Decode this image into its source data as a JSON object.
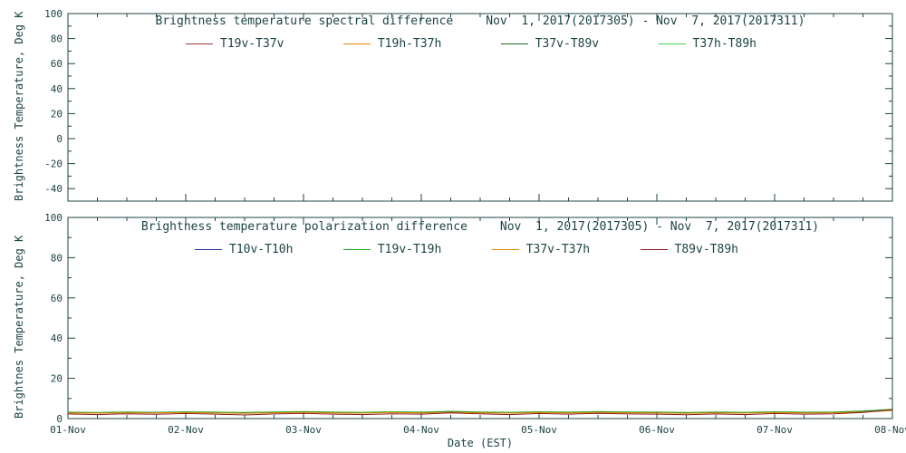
{
  "text_color": "#1c4444",
  "axis_color": "#1c4444",
  "chart_data": [
    {
      "type": "line",
      "title": "Brightness temperature spectral difference",
      "date_range": "Nov  1, 2017(2017305) - Nov  7, 2017(2017311)",
      "ylabel": "Brightness Temperature, Deg K",
      "ylim": [
        -50,
        100
      ],
      "yticks": [
        -40,
        -20,
        0,
        20,
        40,
        60,
        80,
        100
      ],
      "xlim": [
        0,
        7
      ],
      "xticks": [
        0,
        1,
        2,
        3,
        4,
        5,
        6,
        7
      ],
      "grid": false,
      "legend_position": "top-inside",
      "note": "no data lines visible within axis range",
      "series": [
        {
          "name": "T19v-T37v",
          "color": "#993333",
          "values": []
        },
        {
          "name": "T19h-T37h",
          "color": "#dd8800",
          "values": []
        },
        {
          "name": "T37v-T89v",
          "color": "#226622",
          "values": []
        },
        {
          "name": "T37h-T89h",
          "color": "#44cc44",
          "values": []
        }
      ]
    },
    {
      "type": "line",
      "title": "Brightness temperature polarization difference",
      "date_range": "Nov  1, 2017(2017305) - Nov  7, 2017(2017311)",
      "ylabel": "Brightnes Temperature, Deg K",
      "xlabel": "Date (EST)",
      "ylim": [
        0,
        100
      ],
      "yticks": [
        0,
        20,
        40,
        60,
        80,
        100
      ],
      "xlim": [
        0,
        7
      ],
      "xticks": [
        0,
        1,
        2,
        3,
        4,
        5,
        6,
        7
      ],
      "xtick_labels": [
        "01-Nov",
        "02-Nov",
        "03-Nov",
        "04-Nov",
        "05-Nov",
        "06-Nov",
        "07-Nov",
        "08-Nov"
      ],
      "grid": false,
      "legend_position": "top-inside",
      "x": [
        0,
        0.25,
        0.5,
        0.75,
        1,
        1.25,
        1.5,
        1.75,
        2,
        2.25,
        2.5,
        2.75,
        3,
        3.25,
        3.5,
        3.75,
        4,
        4.25,
        4.5,
        4.75,
        5,
        5.25,
        5.5,
        5.75,
        6,
        6.25,
        6.5,
        6.75,
        7
      ],
      "series": [
        {
          "name": "T10v-T10h",
          "color": "#223399",
          "values": [
            3.0,
            2.9,
            3.1,
            3.0,
            3.2,
            3.0,
            2.9,
            3.1,
            3.3,
            3.0,
            2.9,
            3.2,
            3.0,
            3.3,
            3.1,
            2.9,
            3.2,
            3.0,
            3.2,
            3.1,
            3.0,
            2.8,
            3.1,
            2.9,
            3.2,
            3.0,
            3.1,
            3.5,
            4.2
          ]
        },
        {
          "name": "T19v-T19h",
          "color": "#22aa22",
          "values": [
            3.2,
            3.0,
            3.3,
            3.1,
            3.4,
            3.2,
            3.0,
            3.3,
            3.5,
            3.2,
            3.1,
            3.4,
            3.2,
            3.6,
            3.3,
            3.1,
            3.4,
            3.2,
            3.5,
            3.3,
            3.2,
            3.0,
            3.3,
            3.1,
            3.4,
            3.2,
            3.3,
            3.8,
            4.6
          ]
        },
        {
          "name": "T37v-T37h",
          "color": "#dd8800",
          "values": [
            2.8,
            2.7,
            2.9,
            2.8,
            3.0,
            2.8,
            2.6,
            2.9,
            3.1,
            2.8,
            2.7,
            3.0,
            2.8,
            3.1,
            2.9,
            2.7,
            3.0,
            2.8,
            3.0,
            2.9,
            2.8,
            2.6,
            2.9,
            2.7,
            3.0,
            2.8,
            2.9,
            3.3,
            4.0
          ]
        },
        {
          "name": "T89v-T89h",
          "color": "#8b1a1a",
          "values": [
            2.3,
            2.0,
            2.4,
            2.1,
            2.5,
            2.2,
            1.8,
            2.3,
            2.6,
            2.2,
            2.0,
            2.4,
            2.2,
            2.8,
            2.4,
            2.0,
            2.5,
            2.2,
            2.6,
            2.3,
            2.2,
            1.9,
            2.3,
            2.0,
            2.5,
            2.2,
            2.4,
            3.0,
            4.4
          ]
        }
      ]
    }
  ]
}
